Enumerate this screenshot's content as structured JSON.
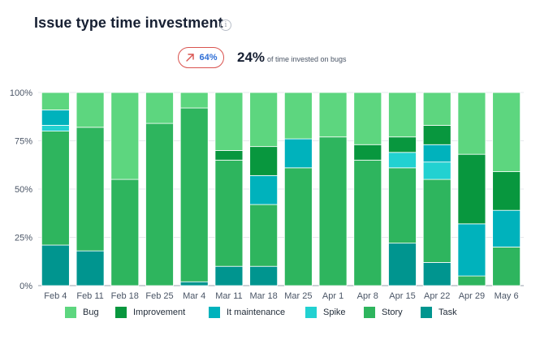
{
  "header": {
    "title": "Issue type time investment",
    "info_icon": "info-icon"
  },
  "kpi": {
    "change_value": "64%",
    "change_icon": "arrow-up-right-icon",
    "change_color": "#d9534f",
    "main_value": "24%",
    "main_label": "of time invested on bugs"
  },
  "chart_data": {
    "type": "bar",
    "stacked": true,
    "categories": [
      "Feb 4",
      "Feb 11",
      "Feb 18",
      "Feb 25",
      "Mar 4",
      "Mar 11",
      "Mar 18",
      "Mar 25",
      "Apr 1",
      "Apr 8",
      "Apr 15",
      "Apr 22",
      "Apr 29",
      "May 6"
    ],
    "ylim": [
      0,
      100
    ],
    "yticks": [
      0,
      25,
      50,
      75,
      100
    ],
    "ytick_labels": [
      "0%",
      "25%",
      "50%",
      "75%",
      "100%"
    ],
    "grid": true,
    "legend_position": "bottom",
    "series": [
      {
        "name": "Task",
        "color": "#00958f",
        "values": [
          21,
          18,
          0,
          0,
          2,
          10,
          10,
          0,
          0,
          0,
          22,
          12,
          0,
          0
        ]
      },
      {
        "name": "Story",
        "color": "#2eb55e",
        "values": [
          59,
          64,
          55,
          84,
          90,
          55,
          32,
          61,
          77,
          65,
          39,
          43,
          5,
          20
        ]
      },
      {
        "name": "Spike",
        "color": "#22d1d1",
        "values": [
          3,
          0,
          0,
          0,
          0,
          0,
          0,
          0,
          0,
          0,
          8,
          9,
          0,
          0
        ]
      },
      {
        "name": "It maintenance",
        "color": "#00b2bc",
        "values": [
          8,
          0,
          0,
          0,
          0,
          0,
          15,
          15,
          0,
          0,
          0,
          9,
          27,
          19
        ]
      },
      {
        "name": "Improvement",
        "color": "#08973e",
        "values": [
          0,
          0,
          0,
          0,
          0,
          5,
          15,
          0,
          0,
          8,
          8,
          10,
          36,
          20
        ]
      },
      {
        "name": "Bug",
        "color": "#5dd67f",
        "values": [
          9,
          18,
          45,
          16,
          8,
          30,
          28,
          24,
          23,
          27,
          23,
          17,
          32,
          41
        ]
      }
    ],
    "legend_order": [
      "Bug",
      "Improvement",
      "It maintenance",
      "Spike",
      "Story",
      "Task"
    ]
  }
}
